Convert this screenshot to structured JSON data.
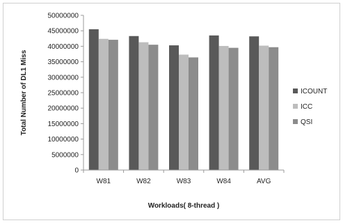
{
  "chart_data": {
    "type": "bar",
    "categories": [
      "W81",
      "W82",
      "W83",
      "W84",
      "AVG"
    ],
    "series": [
      {
        "name": "ICOUNT",
        "color": "#595959",
        "values": [
          45500000,
          43300000,
          40300000,
          43500000,
          43200000
        ]
      },
      {
        "name": "ICC",
        "color": "#bdbdbd",
        "values": [
          42400000,
          41300000,
          37300000,
          40100000,
          40200000
        ]
      },
      {
        "name": "QSI",
        "color": "#8c8c8c",
        "values": [
          42100000,
          40500000,
          36400000,
          39500000,
          39700000
        ]
      }
    ],
    "ylim": [
      0,
      50000000
    ],
    "yticks": [
      "0",
      "5000000",
      "10000000",
      "15000000",
      "20000000",
      "25000000",
      "30000000",
      "35000000",
      "40000000",
      "45000000",
      "50000000"
    ],
    "ytick_values": [
      0,
      5000000,
      10000000,
      15000000,
      20000000,
      25000000,
      30000000,
      35000000,
      40000000,
      45000000,
      50000000
    ],
    "xlabel": "Workloads( 8-thread )",
    "ylabel": "Total Number of DL1 Miss",
    "legend": "right",
    "grid": false
  }
}
